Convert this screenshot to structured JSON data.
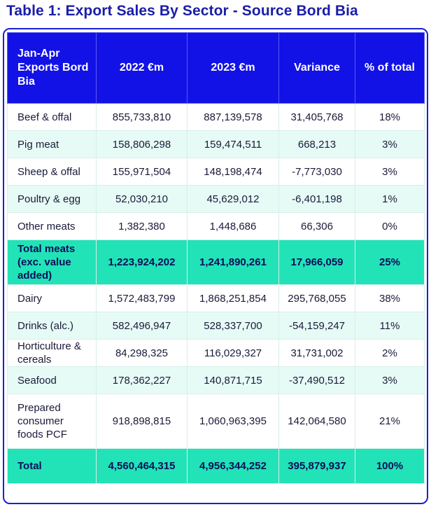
{
  "title": "Table 1: Export Sales By Sector - Source Bord Bia",
  "colors": {
    "header_bg": "#1212e6",
    "accent_row": "#21e3b7",
    "tint_row": "#e6fbf5",
    "title": "#1a1ea8"
  },
  "table": {
    "headers": [
      "Jan-Apr Exports Bord Bia",
      "2022 €m",
      "2023 €m",
      "Variance",
      "% of total"
    ],
    "rows": [
      {
        "style": "light",
        "cells": [
          "Beef & offal",
          "855,733,810",
          "887,139,578",
          "31,405,768",
          "18%"
        ]
      },
      {
        "style": "tint",
        "cells": [
          "Pig meat",
          "158,806,298",
          "159,474,511",
          "668,213",
          "3%"
        ]
      },
      {
        "style": "light",
        "cells": [
          "Sheep & offal",
          "155,971,504",
          "148,198,474",
          "-7,773,030",
          "3%"
        ]
      },
      {
        "style": "tint",
        "cells": [
          "Poultry & egg",
          "52,030,210",
          "45,629,012",
          "-6,401,198",
          "1%"
        ]
      },
      {
        "style": "light",
        "cells": [
          "Other meats",
          "1,382,380",
          "1,448,686",
          "66,306",
          "0%"
        ]
      },
      {
        "style": "accent",
        "cells": [
          "Total meats (exc. value added)",
          "1,223,924,202",
          "1,241,890,261",
          "17,966,059",
          "25%"
        ]
      },
      {
        "style": "light",
        "cells": [
          "Dairy",
          "1,572,483,799",
          "1,868,251,854",
          "295,768,055",
          "38%"
        ]
      },
      {
        "style": "tint",
        "cells": [
          "Drinks (alc.)",
          "582,496,947",
          "528,337,700",
          "-54,159,247",
          "11%"
        ]
      },
      {
        "style": "light",
        "cells": [
          "Horticulture & cereals",
          "84,298,325",
          "116,029,327",
          "31,731,002",
          "2%"
        ]
      },
      {
        "style": "tint",
        "cells": [
          "Seafood",
          "178,362,227",
          "140,871,715",
          "-37,490,512",
          "3%"
        ]
      },
      {
        "style": "light",
        "cells": [
          "Prepared consumer foods PCF",
          "918,898,815",
          "1,060,963,395",
          "142,064,580",
          "21%"
        ]
      },
      {
        "style": "accent",
        "cells": [
          "Total",
          "4,560,464,315",
          "4,956,344,252",
          "395,879,937",
          "100%"
        ]
      }
    ]
  }
}
